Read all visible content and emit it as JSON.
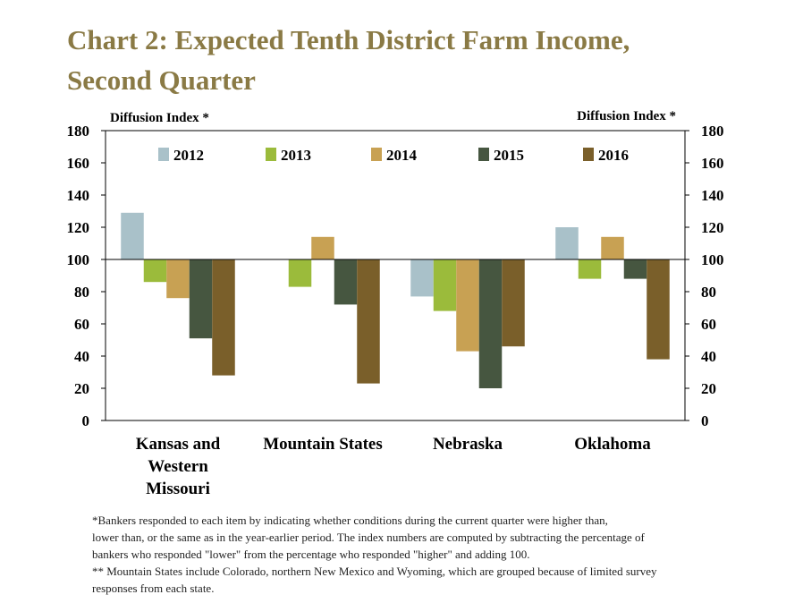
{
  "title_lines": [
    "Chart 2: Expected Tenth District Farm Income,",
    "Second Quarter"
  ],
  "colors": {
    "title": "#8a7a45",
    "2012": "#a9c1c9",
    "2013": "#9bbb3b",
    "2014": "#c8a153",
    "2015": "#465640",
    "2016": "#7a5f2a"
  },
  "chart_data": {
    "type": "bar",
    "baseline": 100,
    "ylabel_left": "Diffusion Index *",
    "ylabel_right": "Diffusion Index *",
    "ylim": [
      0,
      180
    ],
    "yticks": [
      0,
      20,
      40,
      60,
      80,
      100,
      120,
      140,
      160,
      180
    ],
    "legend_position": "top",
    "categories": [
      [
        "Kansas and",
        "Western",
        "Missouri"
      ],
      [
        "Mountain States"
      ],
      [
        "Nebraska"
      ],
      [
        "Oklahoma"
      ]
    ],
    "series": [
      {
        "name": "2012",
        "values": [
          129,
          null,
          77,
          120
        ]
      },
      {
        "name": "2013",
        "values": [
          86,
          83,
          68,
          88
        ]
      },
      {
        "name": "2014",
        "values": [
          76,
          114,
          43,
          114
        ]
      },
      {
        "name": "2015",
        "values": [
          51,
          72,
          20,
          88
        ]
      },
      {
        "name": "2016",
        "values": [
          28,
          23,
          46,
          38
        ]
      }
    ]
  },
  "notes": [
    "*Bankers responded to each item by indicating whether conditions during the current quarter were higher than,",
    "lower than, or the same as in the year-earlier period.  The index numbers are computed by subtracting the percentage of",
    "bankers who responded \"lower\" from the percentage who responded \"higher\" and adding 100.",
    "** Mountain States include Colorado, northern New Mexico and Wyoming, which are grouped because of limited survey",
    "responses from each state."
  ]
}
